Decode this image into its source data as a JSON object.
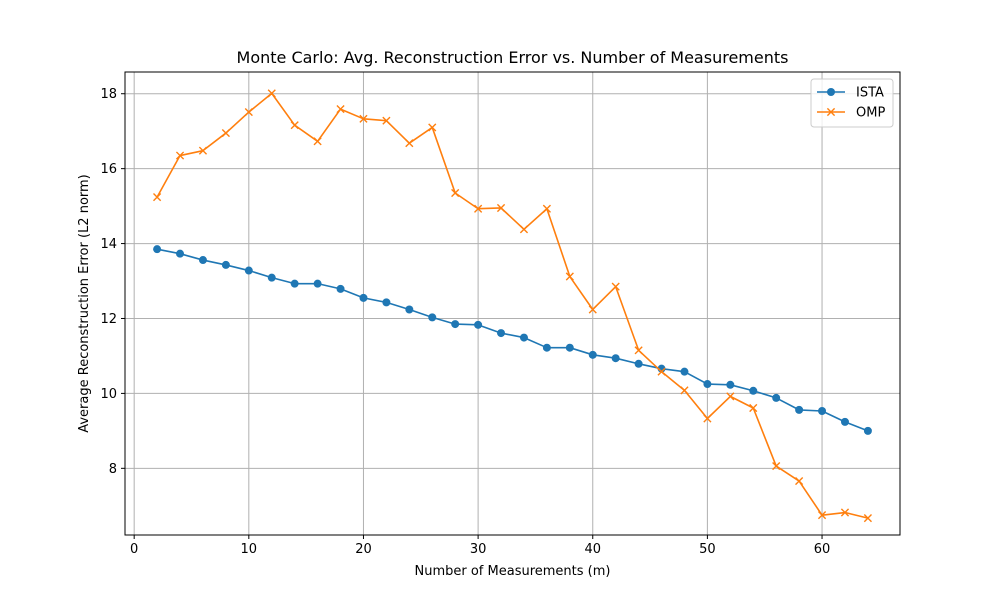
{
  "chart_data": {
    "type": "line",
    "title": "Monte Carlo: Avg. Reconstruction Error vs. Number of Measurements",
    "xlabel": "Number of Measurements (m)",
    "ylabel": "Average Reconstruction Error (L2 norm)",
    "xlim": [
      -0.8,
      66.8
    ],
    "ylim": [
      6.22,
      18.58
    ],
    "xticks": [
      0,
      10,
      20,
      30,
      40,
      50,
      60
    ],
    "yticks": [
      8,
      10,
      12,
      14,
      16,
      18
    ],
    "grid": true,
    "legend_position": "top-right",
    "x": [
      2,
      4,
      6,
      8,
      10,
      12,
      14,
      16,
      18,
      20,
      22,
      24,
      26,
      28,
      30,
      32,
      34,
      36,
      38,
      40,
      42,
      44,
      46,
      48,
      50,
      52,
      54,
      56,
      58,
      60,
      62,
      64
    ],
    "series": [
      {
        "name": "ISTA",
        "color": "#1f77b4",
        "marker": "circle",
        "values": [
          13.85,
          13.73,
          13.56,
          13.43,
          13.28,
          13.09,
          12.93,
          12.93,
          12.79,
          12.55,
          12.43,
          12.24,
          12.03,
          11.85,
          11.83,
          11.61,
          11.49,
          11.22,
          11.22,
          11.03,
          10.94,
          10.79,
          10.66,
          10.58,
          10.25,
          10.23,
          10.07,
          9.88,
          9.56,
          9.53,
          9.24,
          9.0
        ]
      },
      {
        "name": "OMP",
        "color": "#ff7f0e",
        "marker": "x",
        "values": [
          15.24,
          16.35,
          16.48,
          16.95,
          17.51,
          18.01,
          17.16,
          16.73,
          17.59,
          17.33,
          17.28,
          16.68,
          17.1,
          15.35,
          14.93,
          14.95,
          14.38,
          14.93,
          13.12,
          12.24,
          12.85,
          11.15,
          10.58,
          10.08,
          9.33,
          9.92,
          9.61,
          8.06,
          7.66,
          6.75,
          6.82,
          6.67
        ]
      }
    ]
  }
}
